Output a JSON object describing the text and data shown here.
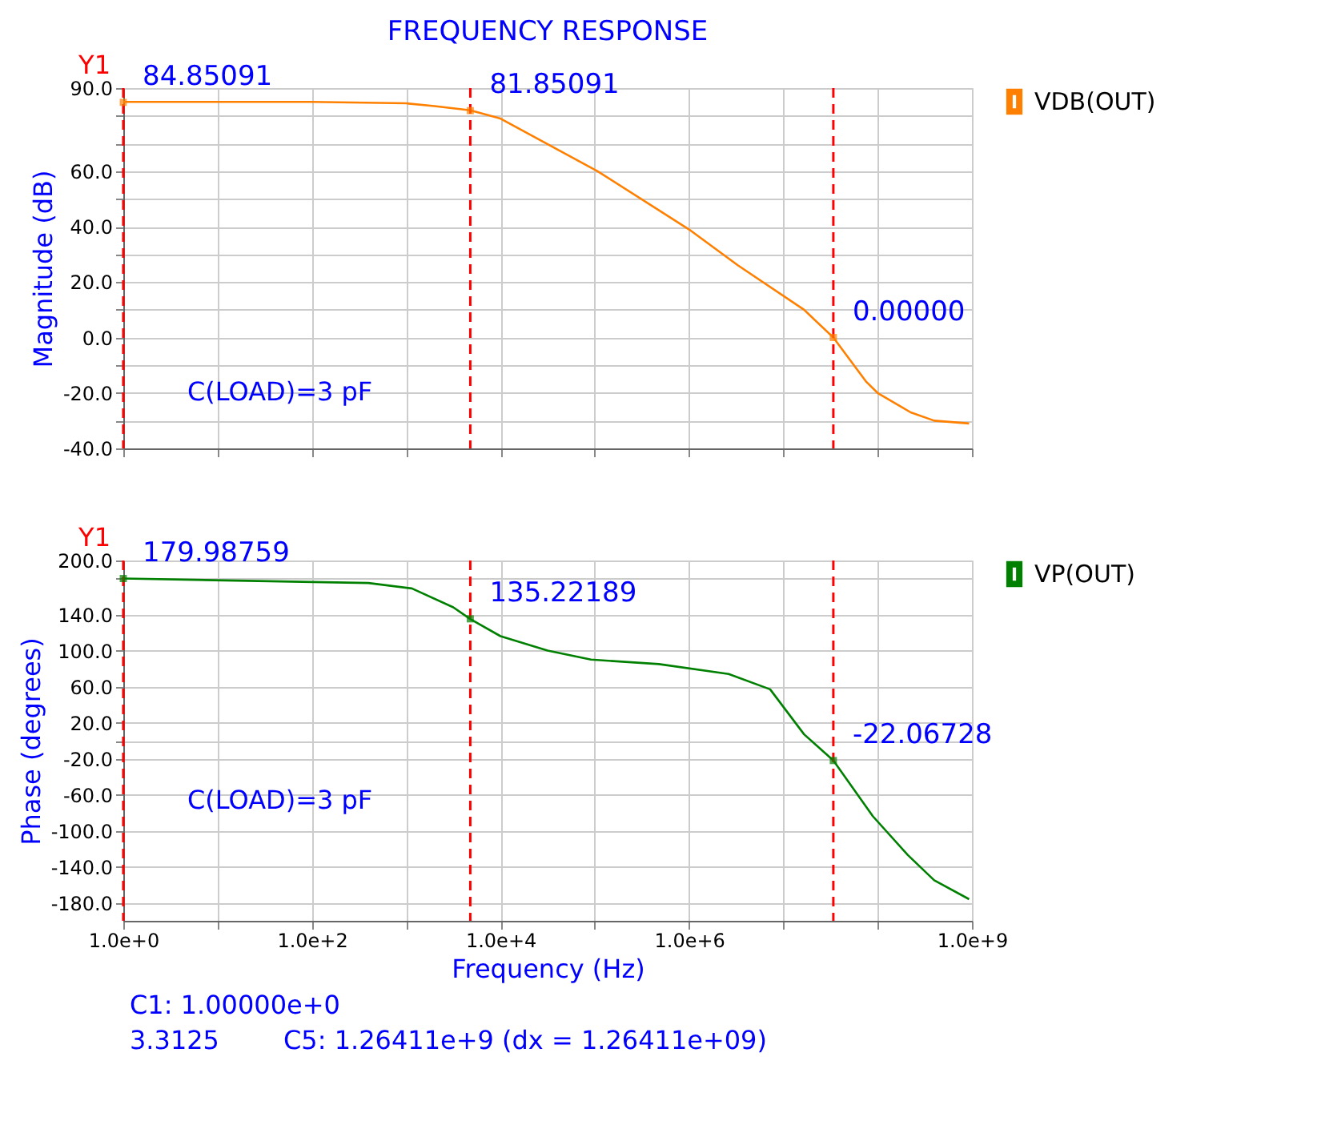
{
  "chart_data": [
    {
      "type": "line",
      "title": "FREQUENCY RESPONSE",
      "ylabel": "Magnitude (dB)",
      "x": [
        1,
        100,
        1000,
        1995,
        4786,
        10000,
        107152,
        1000000,
        3310000,
        16600000,
        33900000,
        75900000,
        100000000,
        224000000,
        398000000,
        933000000
      ],
      "series": [
        {
          "name": "VDB(OUT)",
          "color": "#ff8000",
          "values": [
            85,
            85,
            84.5,
            83.5,
            82,
            79,
            60,
            39,
            26,
            10,
            0,
            -16,
            -20,
            -27,
            -30,
            -31
          ]
        }
      ],
      "log": "x",
      "xlim": [
        1,
        1000000000
      ],
      "ylim": [
        -40,
        90
      ],
      "xticks": [
        {
          "value": 1,
          "label": null
        },
        {
          "value": 10,
          "label": null
        },
        {
          "value": 100,
          "label": null
        },
        {
          "value": 1000,
          "label": null
        },
        {
          "value": 10000,
          "label": null
        },
        {
          "value": 100000,
          "label": null
        },
        {
          "value": 1000000,
          "label": null
        },
        {
          "value": 10000000,
          "label": null
        },
        {
          "value": 100000000,
          "label": null
        },
        {
          "value": 1000000000,
          "label": null
        }
      ],
      "yticks": [
        {
          "value": 90,
          "label": "90.0"
        },
        {
          "value": 80,
          "label": null
        },
        {
          "value": 70,
          "label": null
        },
        {
          "value": 60,
          "label": "60.0"
        },
        {
          "value": 50,
          "label": null
        },
        {
          "value": 40,
          "label": "40.0"
        },
        {
          "value": 30,
          "label": null
        },
        {
          "value": 20,
          "label": "20.0"
        },
        {
          "value": 10,
          "label": null
        },
        {
          "value": 0,
          "label": "0.0"
        },
        {
          "value": -10,
          "label": null
        },
        {
          "value": -20,
          "label": "-20.0"
        },
        {
          "value": -30,
          "label": null
        },
        {
          "value": -40,
          "label": "-40.0"
        }
      ],
      "tick_labels": "y",
      "grid": true,
      "legend": "right",
      "line_style": "solid",
      "marker": "none",
      "ref_lines": [
        {
          "axis": "x",
          "value": 1,
          "color": "#ff0000",
          "line_style": "dashed"
        },
        {
          "axis": "x",
          "value": 4786,
          "color": "#ff0000",
          "line_style": "dashed"
        },
        {
          "axis": "x",
          "value": 33900000,
          "color": "#ff0000",
          "line_style": "dashed"
        }
      ],
      "annotations": [
        "Y1",
        "C(LOAD)=3 pF",
        {
          "text": "84.85091",
          "x": 1,
          "y": 84.85091
        },
        {
          "text": "81.85091",
          "x": 4786,
          "y": 81.85091
        },
        {
          "text": "0.00000",
          "x": 33900000,
          "y": 0
        }
      ]
    },
    {
      "type": "line",
      "ylabel": "Phase (degrees)",
      "xlabel": "Frequency (Hz)",
      "x": [
        1,
        398,
        1148,
        3162,
        4786,
        10000,
        31623,
        91201,
        478630,
        2630000,
        7240000,
        16600000,
        33900000,
        89100000,
        209000000,
        398000000,
        933000000
      ],
      "series": [
        {
          "name": "VP(OUT)",
          "color": "#008000",
          "values": [
            180,
            175,
            169,
            148,
            135,
            116,
            100,
            90,
            85,
            74,
            57,
            7,
            -22,
            -84,
            -127,
            -155,
            -176
          ]
        }
      ],
      "log": "x",
      "xlim": [
        1,
        1000000000
      ],
      "ylim": [
        -200,
        200
      ],
      "xticks": [
        {
          "value": 1,
          "label": "1.0e+0"
        },
        {
          "value": 10,
          "label": null
        },
        {
          "value": 100,
          "label": "1.0e+2"
        },
        {
          "value": 1000,
          "label": null
        },
        {
          "value": 10000,
          "label": "1.0e+4"
        },
        {
          "value": 100000,
          "label": null
        },
        {
          "value": 1000000,
          "label": "1.0e+6"
        },
        {
          "value": 10000000,
          "label": null
        },
        {
          "value": 100000000,
          "label": null
        },
        {
          "value": 1000000000,
          "label": "1.0e+9"
        }
      ],
      "yticks": [
        {
          "value": 200,
          "label": "200.0"
        },
        {
          "value": 180,
          "label": null
        },
        {
          "value": 140,
          "label": "140.0"
        },
        {
          "value": 100,
          "label": "100.0"
        },
        {
          "value": 60,
          "label": "60.0"
        },
        {
          "value": 20,
          "label": "20.0"
        },
        {
          "value": 0,
          "label": null
        },
        {
          "value": -20,
          "label": "-20.0"
        },
        {
          "value": -60,
          "label": "-60.0"
        },
        {
          "value": -100,
          "label": "-100.0"
        },
        {
          "value": -140,
          "label": "-140.0"
        },
        {
          "value": -180,
          "label": "-180.0"
        }
      ],
      "grid": true,
      "legend": "right",
      "line_style": "solid",
      "marker": "none",
      "ref_lines": [
        {
          "axis": "x",
          "value": 1,
          "color": "#ff0000",
          "line_style": "dashed"
        },
        {
          "axis": "x",
          "value": 4786,
          "color": "#ff0000",
          "line_style": "dashed"
        },
        {
          "axis": "x",
          "value": 33900000,
          "color": "#ff0000",
          "line_style": "dashed"
        }
      ],
      "annotations": [
        "Y1",
        "C(LOAD)=3 pF",
        "C1: 1.00000e+0",
        "3.3125",
        "C5: 1.26411e+9 (dx = 1.26411e+09)",
        {
          "text": "179.98759",
          "x": 1,
          "y": 179.98759
        },
        {
          "text": "135.22189",
          "x": 4786,
          "y": 135.22189
        },
        {
          "text": "-22.06728",
          "x": 33900000,
          "y": -22.06728
        }
      ]
    }
  ]
}
